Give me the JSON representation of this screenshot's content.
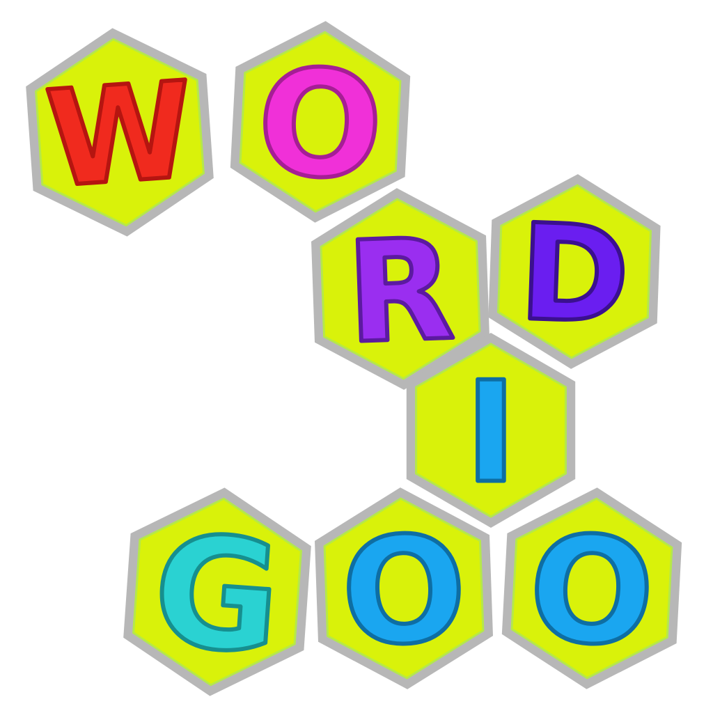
{
  "logo": {
    "tiles": [
      {
        "letter": "W",
        "color": "#f02a1e",
        "shade": "#b51510",
        "rotate": -4
      },
      {
        "letter": "O",
        "color": "#f030d8",
        "shade": "#a51e95",
        "rotate": 3
      },
      {
        "letter": "R",
        "color": "#9a2ef0",
        "shade": "#5c1aa0",
        "rotate": -2
      },
      {
        "letter": "D",
        "color": "#6a1ef0",
        "shade": "#3b108f",
        "rotate": 2
      },
      {
        "letter": "I",
        "color": "#1aa6f0",
        "shade": "#0e6ea3",
        "rotate": 0
      },
      {
        "letter": "G",
        "color": "#2ad2d2",
        "shade": "#168f8f",
        "rotate": 4
      },
      {
        "letter": "O",
        "color": "#1aa6f0",
        "shade": "#0e6ea3",
        "rotate": -2
      },
      {
        "letter": "O",
        "color": "#1aa6f0",
        "shade": "#0e6ea3",
        "rotate": 3
      }
    ],
    "colors": {
      "tile_face": "#d9f20a",
      "tile_outline": "#b7b7b7",
      "background": "#ffffff"
    }
  }
}
